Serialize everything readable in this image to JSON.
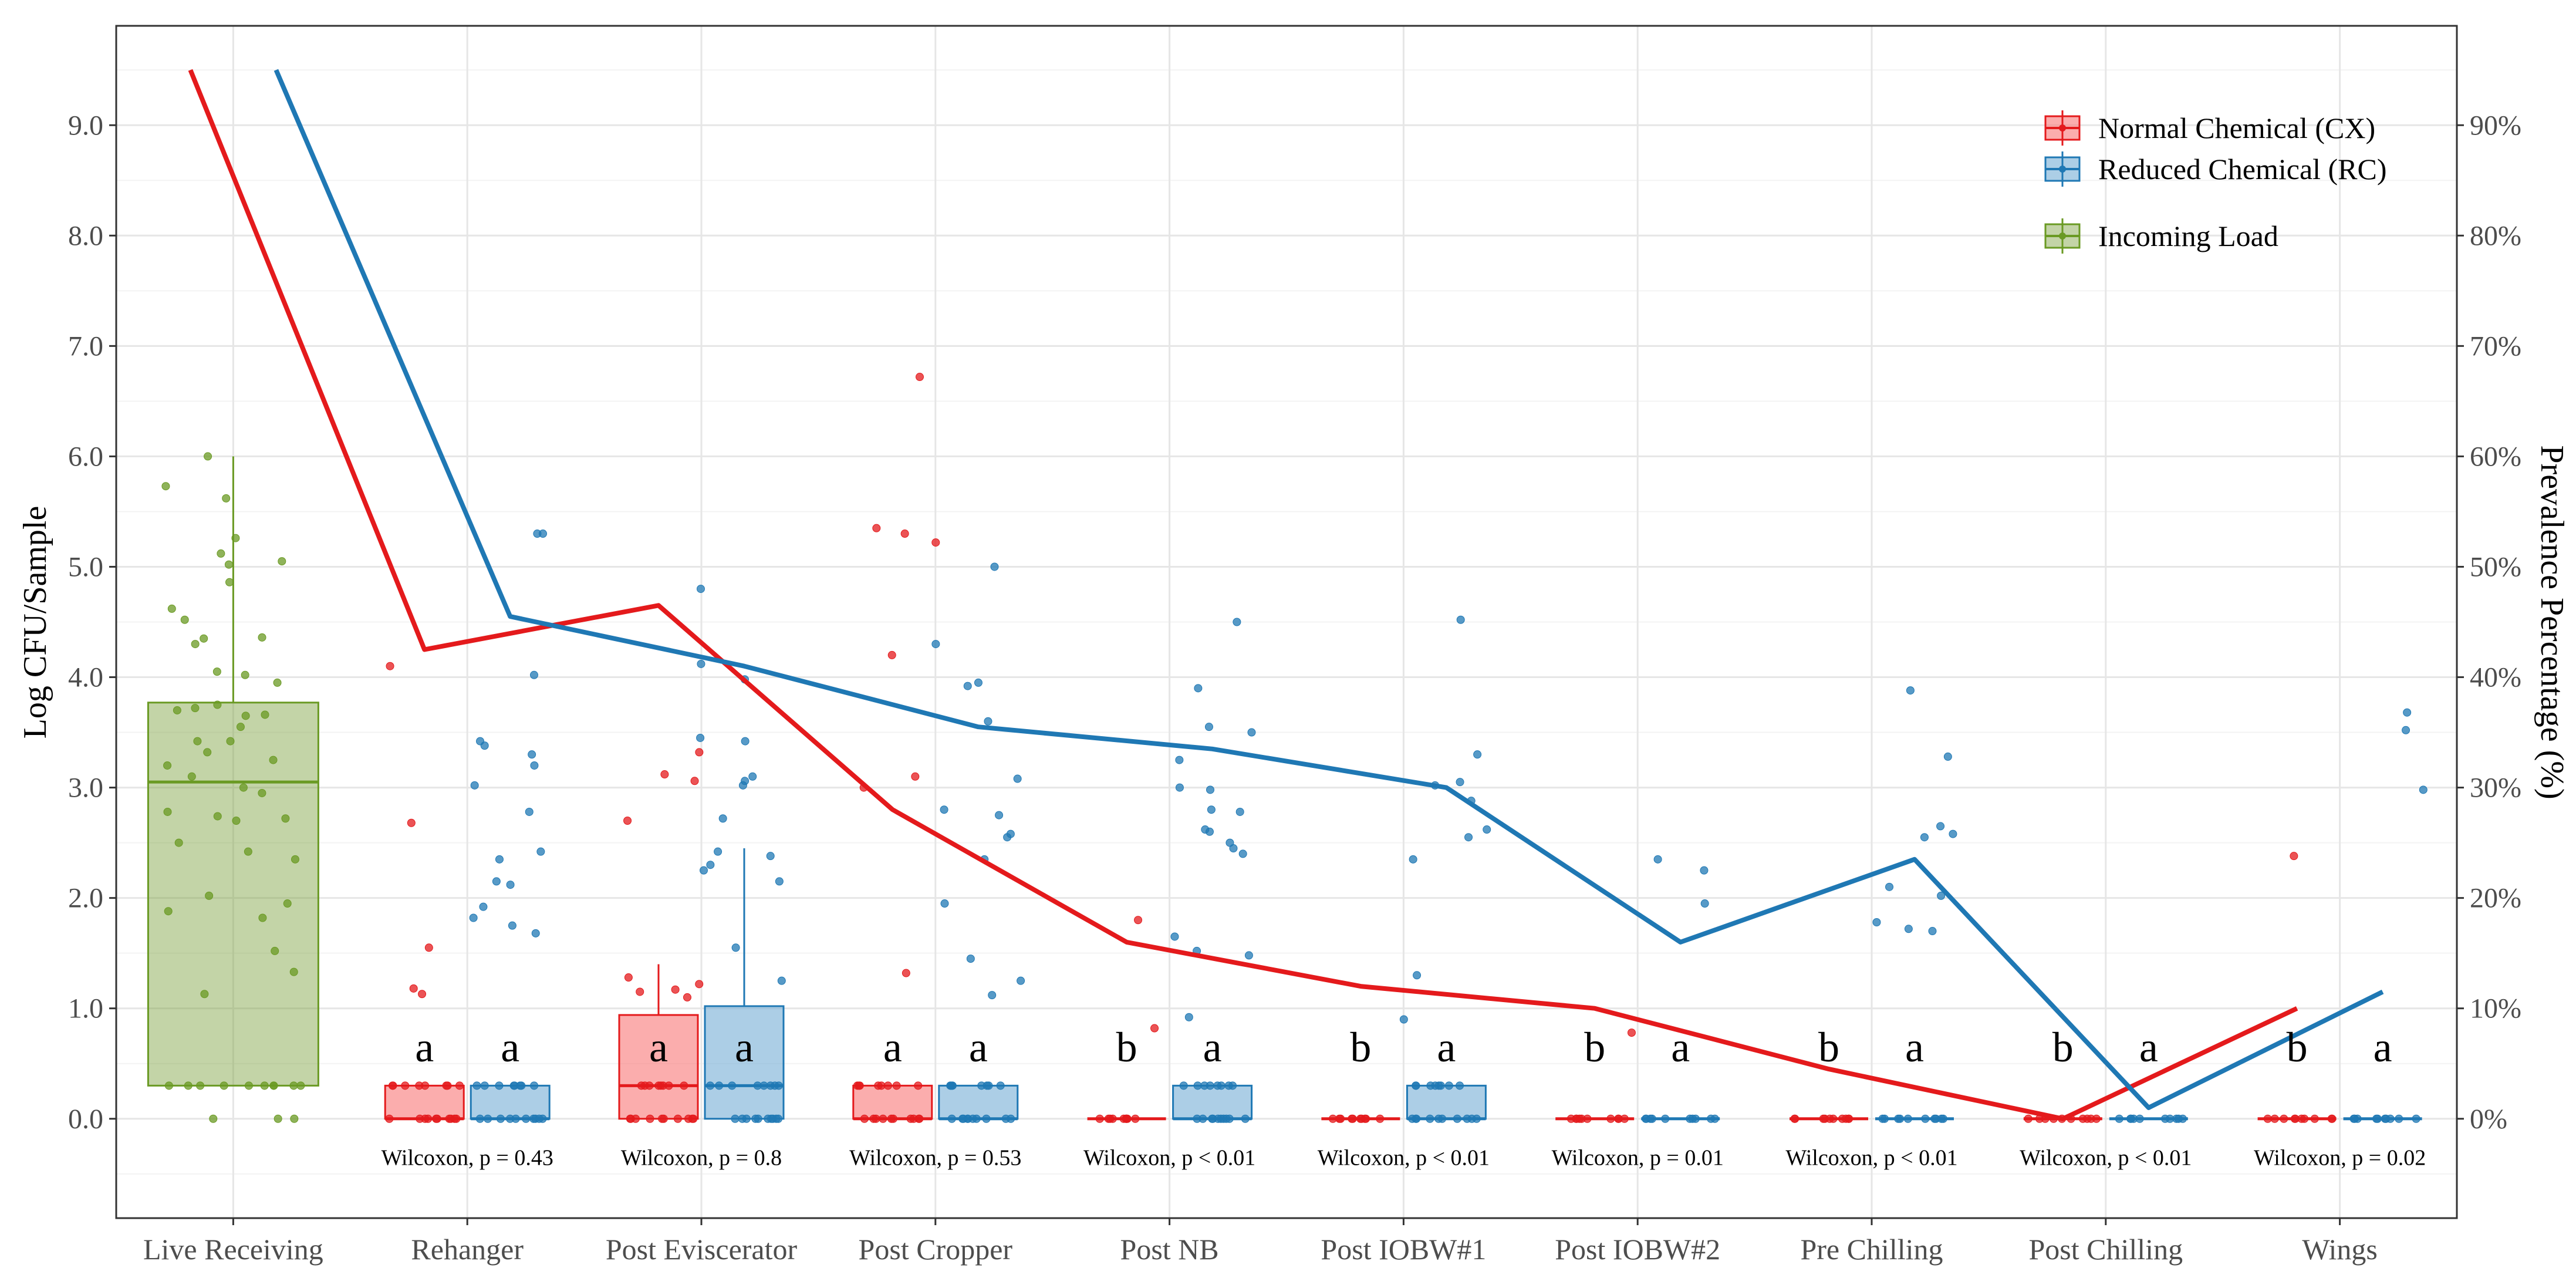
{
  "chart_data": {
    "type": "box",
    "title": "",
    "xlabel": "",
    "ylabel": "Log CFU/Sample",
    "ylabel_right": "Prevalence Percentage (%)",
    "ylim": [
      -0.9,
      9.9
    ],
    "y_ticks": [
      "0.0",
      "1.0",
      "2.0",
      "3.0",
      "4.0",
      "5.0",
      "6.0",
      "7.0",
      "8.0",
      "9.0"
    ],
    "y_ticks_right": [
      "0%",
      "10%",
      "20%",
      "30%",
      "40%",
      "50%",
      "60%",
      "70%",
      "80%",
      "90%"
    ],
    "categories": [
      "Live Receiving",
      "Rehanger",
      "Post Eviscerator",
      "Post Cropper",
      "Post NB",
      "Post IOBW#1",
      "Post IOBW#2",
      "Pre Chilling",
      "Post Chilling",
      "Wings"
    ],
    "legend": [
      {
        "label": "Normal Chemical (CX)",
        "color": "#e41a1c"
      },
      {
        "label": "Reduced Chemical (RC)",
        "color": "#1f78b4"
      },
      {
        "label": "Incoming Load",
        "color": "#6a9a23"
      }
    ],
    "incoming_load": {
      "category": "Live Receiving",
      "box": {
        "min": 0.3,
        "q1": 0.3,
        "median": 3.05,
        "q3": 3.77,
        "max": 6.0
      },
      "points": [
        5.73,
        5.62,
        6.0,
        4.62,
        5.05,
        5.12,
        5.26,
        5.02,
        4.86,
        4.35,
        4.3,
        4.36,
        4.52,
        4.05,
        4.02,
        3.95,
        3.75,
        3.7,
        3.72,
        3.66,
        3.65,
        3.55,
        3.42,
        3.42,
        3.32,
        3.25,
        3.2,
        3.1,
        3.0,
        2.95,
        2.78,
        2.74,
        2.72,
        2.7,
        2.5,
        2.42,
        2.35,
        2.02,
        1.95,
        1.88,
        1.82,
        1.52,
        1.33,
        1.13,
        0.3,
        0.3,
        0.3,
        0.3,
        0.3,
        0.3,
        0.3,
        0.3,
        0.3,
        0.3,
        0.0,
        0.0,
        0.0
      ]
    },
    "series": [
      {
        "name": "Normal Chemical (CX)",
        "color": "#e41a1c",
        "boxes": [
          {
            "category": "Rehanger",
            "min": 0.0,
            "q1": 0.0,
            "median": 0.0,
            "q3": 0.3,
            "max": 0.3
          },
          {
            "category": "Post Eviscerator",
            "min": 0.0,
            "q1": 0.0,
            "median": 0.3,
            "q3": 0.94,
            "max": 1.4
          },
          {
            "category": "Post Cropper",
            "min": 0.0,
            "q1": 0.0,
            "median": 0.0,
            "q3": 0.3,
            "max": 0.3
          },
          {
            "category": "Post NB",
            "min": 0.0,
            "q1": 0.0,
            "median": 0.0,
            "q3": 0.0,
            "max": 0.0
          },
          {
            "category": "Post IOBW#1",
            "min": 0.0,
            "q1": 0.0,
            "median": 0.0,
            "q3": 0.0,
            "max": 0.0
          },
          {
            "category": "Post IOBW#2",
            "min": 0.0,
            "q1": 0.0,
            "median": 0.0,
            "q3": 0.0,
            "max": 0.0
          },
          {
            "category": "Pre Chilling",
            "min": 0.0,
            "q1": 0.0,
            "median": 0.0,
            "q3": 0.0,
            "max": 0.0
          },
          {
            "category": "Post Chilling",
            "min": 0.0,
            "q1": 0.0,
            "median": 0.0,
            "q3": 0.0,
            "max": 0.0
          },
          {
            "category": "Wings",
            "min": 0.0,
            "q1": 0.0,
            "median": 0.0,
            "q3": 0.0,
            "max": 0.0
          }
        ],
        "outliers": [
          [
            4.1,
            2.68,
            1.55,
            1.18,
            1.13
          ],
          [
            3.32,
            3.12,
            3.06,
            2.7,
            1.28,
            1.22,
            1.17,
            1.15,
            1.1
          ],
          [
            6.72,
            5.35,
            5.3,
            5.22,
            4.2,
            3.1,
            3.0,
            1.32
          ],
          [
            1.8,
            0.82
          ],
          [],
          [
            0.78
          ],
          [],
          [],
          [
            2.38
          ]
        ],
        "prevalence_pct": [
          95,
          42.5,
          46.5,
          28,
          16,
          12,
          10,
          4.5,
          0,
          10
        ],
        "significance": [
          "a",
          "a",
          "a",
          "b",
          "b",
          "b",
          "b",
          "b",
          "b"
        ]
      },
      {
        "name": "Reduced Chemical (RC)",
        "color": "#1f78b4",
        "boxes": [
          {
            "category": "Rehanger",
            "min": 0.0,
            "q1": 0.0,
            "median": 0.0,
            "q3": 0.3,
            "max": 0.3
          },
          {
            "category": "Post Eviscerator",
            "min": 0.0,
            "q1": 0.0,
            "median": 0.3,
            "q3": 1.02,
            "max": 2.45
          },
          {
            "category": "Post Cropper",
            "min": 0.0,
            "q1": 0.0,
            "median": 0.0,
            "q3": 0.3,
            "max": 0.3
          },
          {
            "category": "Post NB",
            "min": 0.0,
            "q1": 0.0,
            "median": 0.0,
            "q3": 0.3,
            "max": 0.3
          },
          {
            "category": "Post IOBW#1",
            "min": 0.0,
            "q1": 0.0,
            "median": 0.0,
            "q3": 0.3,
            "max": 0.3
          },
          {
            "category": "Post IOBW#2",
            "min": 0.0,
            "q1": 0.0,
            "median": 0.0,
            "q3": 0.0,
            "max": 0.0
          },
          {
            "category": "Pre Chilling",
            "min": 0.0,
            "q1": 0.0,
            "median": 0.0,
            "q3": 0.0,
            "max": 0.0
          },
          {
            "category": "Post Chilling",
            "min": 0.0,
            "q1": 0.0,
            "median": 0.0,
            "q3": 0.0,
            "max": 0.0
          },
          {
            "category": "Wings",
            "min": 0.0,
            "q1": 0.0,
            "median": 0.0,
            "q3": 0.0,
            "max": 0.0
          }
        ],
        "outliers": [
          [
            5.3,
            5.3,
            4.02,
            3.42,
            3.38,
            3.3,
            3.2,
            3.02,
            2.78,
            2.42,
            2.35,
            2.15,
            2.12,
            1.92,
            1.82,
            1.75,
            1.68
          ],
          [
            4.8,
            4.12,
            3.98,
            3.45,
            3.42,
            3.1,
            3.06,
            3.02,
            2.72,
            2.42,
            2.38,
            2.3,
            2.25,
            2.15,
            1.55,
            1.25
          ],
          [
            5.0,
            4.3,
            3.95,
            3.92,
            3.6,
            3.08,
            2.8,
            2.75,
            2.58,
            2.55,
            2.35,
            1.95,
            1.45,
            1.25,
            1.12
          ],
          [
            4.5,
            3.9,
            3.55,
            3.5,
            3.25,
            3.0,
            2.98,
            2.8,
            2.78,
            2.62,
            2.6,
            2.5,
            2.45,
            2.4,
            1.65,
            1.52,
            1.48,
            0.92
          ],
          [
            4.52,
            3.3,
            3.05,
            3.02,
            2.88,
            2.62,
            2.55,
            2.35,
            1.3,
            0.9
          ],
          [
            2.35,
            2.25,
            1.95
          ],
          [
            3.88,
            3.28,
            2.65,
            2.58,
            2.55,
            2.1,
            2.02,
            1.78,
            1.72,
            1.7
          ],
          [],
          [
            3.68,
            3.52,
            2.98
          ]
        ],
        "prevalence_pct": [
          95,
          45.5,
          41,
          35.5,
          33.5,
          30,
          16,
          23.5,
          1,
          11.5
        ],
        "significance": [
          "a",
          "a",
          "a",
          "a",
          "a",
          "a",
          "a",
          "a",
          "a"
        ]
      }
    ],
    "wilcoxon": [
      "Wilcoxon, p = 0.43",
      "Wilcoxon, p = 0.8",
      "Wilcoxon, p = 0.53",
      "Wilcoxon, p < 0.01",
      "Wilcoxon, p < 0.01",
      "Wilcoxon, p = 0.01",
      "Wilcoxon, p < 0.01",
      "Wilcoxon, p < 0.01",
      "Wilcoxon, p = 0.02"
    ]
  }
}
